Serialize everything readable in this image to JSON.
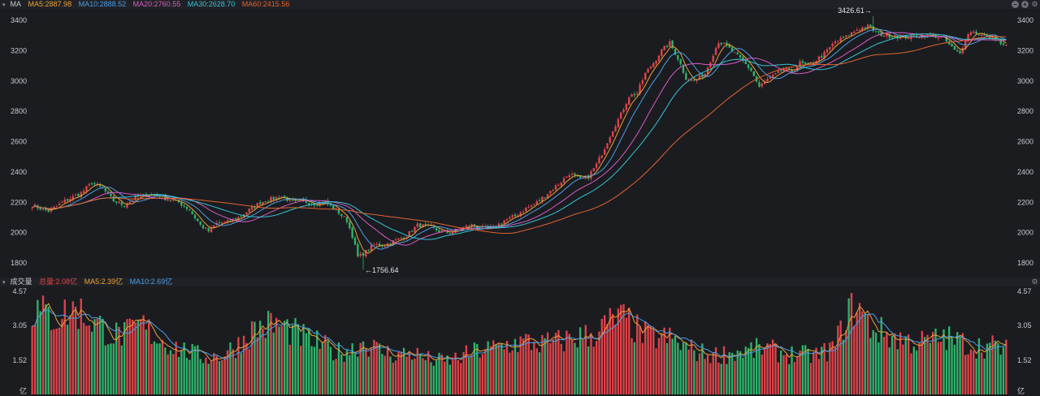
{
  "ma_legend": {
    "toggle": "▾",
    "title": "MA",
    "items": [
      {
        "text": "MA5:2887.98",
        "color": "#e8a23a"
      },
      {
        "text": "MA10:2888.52",
        "color": "#4a9fe8"
      },
      {
        "text": "MA20:2760.55",
        "color": "#d85cc5"
      },
      {
        "text": "MA30:2628.70",
        "color": "#33c6d8"
      },
      {
        "text": "MA60:2415.56",
        "color": "#e0652e"
      }
    ]
  },
  "vol_legend": {
    "toggle": "▾",
    "title": "成交量",
    "items": [
      {
        "text": "总量:2.08亿",
        "color": "#e0434a"
      },
      {
        "text": "MA5:2.39亿",
        "color": "#e8a23a"
      },
      {
        "text": "MA10:2.69亿",
        "color": "#4a9fe8"
      }
    ]
  },
  "controls": {
    "minus": "–",
    "plus": "+",
    "gear": "⚙"
  },
  "colors": {
    "up": "#e0434a",
    "down": "#2fb36b",
    "bg": "#1b1c20"
  },
  "chart_data": [
    {
      "type": "candlestick",
      "yticks": [
        1800,
        2000,
        2200,
        2400,
        2600,
        2800,
        3000,
        3200,
        3400
      ],
      "ylim": [
        1715,
        3470
      ],
      "annotations": {
        "high": "3426.61",
        "low": "1756.64"
      },
      "anchors": [
        [
          0,
          2180
        ],
        [
          6,
          2140
        ],
        [
          12,
          2210
        ],
        [
          18,
          2260
        ],
        [
          22,
          2330
        ],
        [
          26,
          2290
        ],
        [
          30,
          2210
        ],
        [
          34,
          2180
        ],
        [
          38,
          2230
        ],
        [
          42,
          2250
        ],
        [
          46,
          2250
        ],
        [
          50,
          2220
        ],
        [
          54,
          2200
        ],
        [
          58,
          2150
        ],
        [
          62,
          2050
        ],
        [
          65,
          2010
        ],
        [
          68,
          2060
        ],
        [
          72,
          2070
        ],
        [
          76,
          2100
        ],
        [
          80,
          2150
        ],
        [
          84,
          2200
        ],
        [
          88,
          2220
        ],
        [
          92,
          2240
        ],
        [
          96,
          2200
        ],
        [
          100,
          2210
        ],
        [
          104,
          2190
        ],
        [
          108,
          2200
        ],
        [
          112,
          2150
        ],
        [
          116,
          2080
        ],
        [
          118,
          1980
        ],
        [
          120,
          1840
        ],
        [
          122,
          1860
        ],
        [
          126,
          1920
        ],
        [
          130,
          1920
        ],
        [
          134,
          1950
        ],
        [
          138,
          1980
        ],
        [
          142,
          2050
        ],
        [
          146,
          2040
        ],
        [
          150,
          2010
        ],
        [
          154,
          2000
        ],
        [
          158,
          2030
        ],
        [
          162,
          2050
        ],
        [
          166,
          2030
        ],
        [
          170,
          2030
        ],
        [
          174,
          2080
        ],
        [
          178,
          2110
        ],
        [
          182,
          2160
        ],
        [
          186,
          2200
        ],
        [
          190,
          2260
        ],
        [
          194,
          2320
        ],
        [
          198,
          2390
        ],
        [
          202,
          2350
        ],
        [
          205,
          2370
        ],
        [
          208,
          2450
        ],
        [
          211,
          2560
        ],
        [
          214,
          2680
        ],
        [
          217,
          2780
        ],
        [
          220,
          2900
        ],
        [
          223,
          2920
        ],
        [
          226,
          3050
        ],
        [
          229,
          3120
        ],
        [
          232,
          3200
        ],
        [
          235,
          3250
        ],
        [
          238,
          3150
        ],
        [
          241,
          3020
        ],
        [
          244,
          3000
        ],
        [
          248,
          3050
        ],
        [
          251,
          3180
        ],
        [
          253,
          3260
        ],
        [
          256,
          3230
        ],
        [
          259,
          3180
        ],
        [
          262,
          3130
        ],
        [
          265,
          3070
        ],
        [
          268,
          2960
        ],
        [
          271,
          3010
        ],
        [
          274,
          3040
        ],
        [
          277,
          3080
        ],
        [
          280,
          3060
        ],
        [
          283,
          3120
        ],
        [
          286,
          3100
        ],
        [
          289,
          3140
        ],
        [
          292,
          3180
        ],
        [
          296,
          3260
        ],
        [
          300,
          3290
        ],
        [
          304,
          3340
        ],
        [
          308,
          3360
        ],
        [
          312,
          3310
        ],
        [
          316,
          3300
        ],
        [
          320,
          3290
        ],
        [
          324,
          3290
        ],
        [
          328,
          3300
        ],
        [
          332,
          3300
        ],
        [
          336,
          3280
        ],
        [
          340,
          3200
        ],
        [
          342,
          3180
        ],
        [
          344,
          3280
        ],
        [
          346,
          3330
        ],
        [
          349,
          3310
        ],
        [
          352,
          3290
        ],
        [
          355,
          3280
        ],
        [
          358,
          3230
        ]
      ],
      "candle_count": 360
    },
    {
      "type": "bar",
      "series": "volume",
      "yticks": [
        1.52,
        3.05,
        4.57
      ],
      "ylim": [
        0,
        4.57
      ],
      "unit": "亿",
      "anchors": [
        [
          0,
          3.9
        ],
        [
          8,
          3.5
        ],
        [
          16,
          3.9
        ],
        [
          24,
          3.2
        ],
        [
          30,
          2.7
        ],
        [
          36,
          2.8
        ],
        [
          40,
          3.2
        ],
        [
          46,
          2.6
        ],
        [
          52,
          2.2
        ],
        [
          58,
          1.9
        ],
        [
          64,
          1.7
        ],
        [
          70,
          1.8
        ],
        [
          76,
          2.3
        ],
        [
          82,
          3.0
        ],
        [
          88,
          3.2
        ],
        [
          94,
          3.0
        ],
        [
          100,
          2.6
        ],
        [
          106,
          2.3
        ],
        [
          112,
          1.9
        ],
        [
          118,
          2.1
        ],
        [
          122,
          2.4
        ],
        [
          128,
          2.0
        ],
        [
          134,
          1.8
        ],
        [
          140,
          1.9
        ],
        [
          146,
          1.6
        ],
        [
          152,
          1.5
        ],
        [
          158,
          1.7
        ],
        [
          164,
          2.0
        ],
        [
          170,
          2.1
        ],
        [
          176,
          2.3
        ],
        [
          182,
          2.4
        ],
        [
          188,
          2.3
        ],
        [
          194,
          2.4
        ],
        [
          200,
          2.6
        ],
        [
          206,
          2.7
        ],
        [
          212,
          3.2
        ],
        [
          216,
          3.5
        ],
        [
          220,
          3.3
        ],
        [
          224,
          2.8
        ],
        [
          228,
          2.6
        ],
        [
          232,
          2.6
        ],
        [
          236,
          2.5
        ],
        [
          240,
          2.2
        ],
        [
          246,
          1.9
        ],
        [
          252,
          1.8
        ],
        [
          258,
          1.9
        ],
        [
          264,
          2.0
        ],
        [
          270,
          2.1
        ],
        [
          276,
          1.9
        ],
        [
          282,
          1.8
        ],
        [
          290,
          1.8
        ],
        [
          296,
          2.2
        ],
        [
          300,
          3.6
        ],
        [
          304,
          4.1
        ],
        [
          308,
          3.2
        ],
        [
          312,
          2.9
        ],
        [
          318,
          2.6
        ],
        [
          324,
          2.4
        ],
        [
          330,
          2.4
        ],
        [
          336,
          2.6
        ],
        [
          342,
          2.4
        ],
        [
          348,
          2.2
        ],
        [
          354,
          2.2
        ],
        [
          358,
          2.1
        ]
      ],
      "ma_values": {
        "MA5": 2.39,
        "MA10": 2.69,
        "total": 2.08
      }
    }
  ]
}
